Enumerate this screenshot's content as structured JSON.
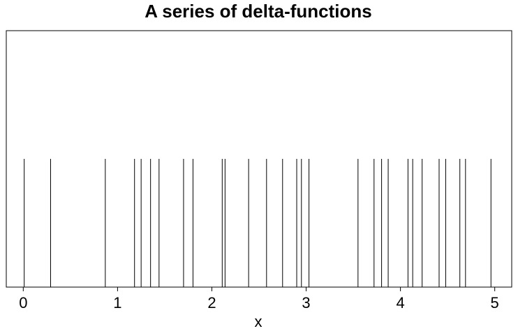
{
  "chart_data": {
    "type": "bar",
    "title": "A series of delta-functions",
    "xlabel": "x",
    "ylabel": "",
    "xlim": [
      -0.18,
      5.18
    ],
    "ylim": [
      0,
      2
    ],
    "x_ticks": [
      "0",
      "1",
      "2",
      "3",
      "4",
      "5"
    ],
    "x": [
      0.01,
      0.29,
      0.87,
      1.18,
      1.25,
      1.35,
      1.44,
      1.7,
      1.8,
      2.11,
      2.14,
      2.39,
      2.58,
      2.75,
      2.9,
      2.95,
      3.03,
      3.55,
      3.72,
      3.8,
      3.87,
      4.08,
      4.13,
      4.23,
      4.41,
      4.48,
      4.63,
      4.69,
      4.96
    ],
    "values": [
      1,
      1,
      1,
      1,
      1,
      1,
      1,
      1,
      1,
      1,
      1,
      1,
      1,
      1,
      1,
      1,
      1,
      1,
      1,
      1,
      1,
      1,
      1,
      1,
      1,
      1,
      1,
      1,
      1
    ],
    "grid": false
  }
}
